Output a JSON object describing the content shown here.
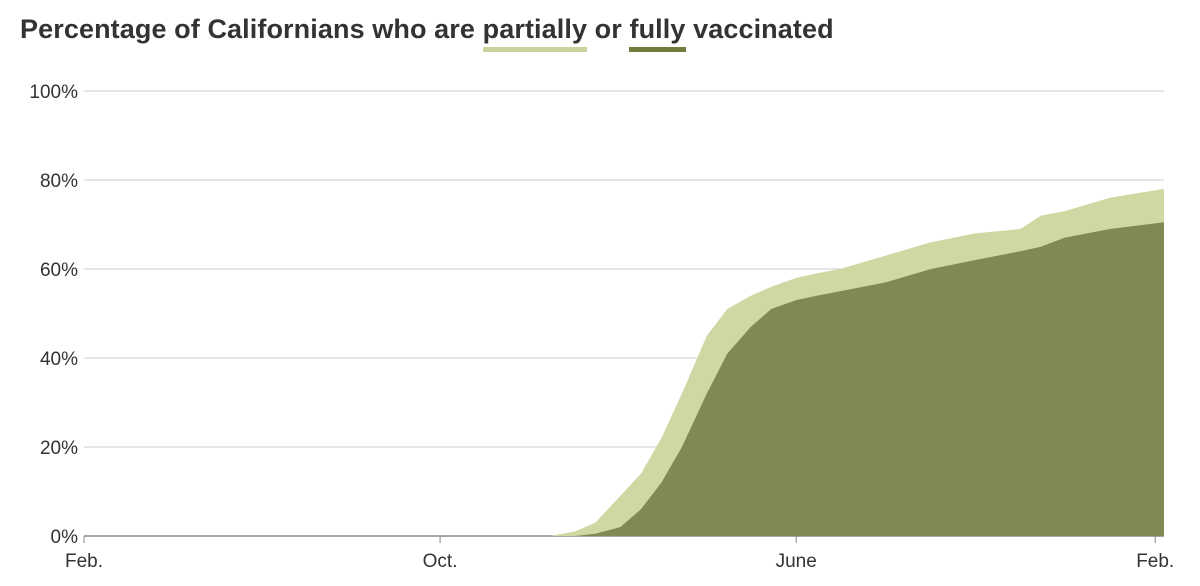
{
  "title": {
    "prefix": "Percentage of Californians who are ",
    "partial_word": "partially",
    "middle": " or ",
    "full_word": "fully",
    "suffix": " vaccinated"
  },
  "colors": {
    "partial": "#cfd8a3",
    "full": "#7e8a52",
    "grid": "#cccccc",
    "axis": "#888888",
    "partial_underline": "#c9d49c",
    "full_underline": "#6f7d3f"
  },
  "chart_data": {
    "type": "area",
    "title": "Percentage of Californians who are partially or fully vaccinated",
    "xlabel": "",
    "ylabel": "",
    "ylim": [
      0,
      100
    ],
    "yticks": [
      0,
      20,
      40,
      60,
      80,
      100
    ],
    "ytick_labels": [
      "0%",
      "20%",
      "40%",
      "60%",
      "80%",
      "100%"
    ],
    "xlim": [
      "2020-02-01",
      "2022-02-07"
    ],
    "xticks": [
      "2020-02-01",
      "2020-10-01",
      "2021-06-01",
      "2022-02-01"
    ],
    "xtick_labels": [
      "Feb.",
      "Oct.",
      "June",
      "Feb."
    ],
    "grid": true,
    "legend": "title",
    "x": [
      "2020-02-01",
      "2020-12-15",
      "2021-01-01",
      "2021-01-15",
      "2021-02-01",
      "2021-02-15",
      "2021-03-01",
      "2021-03-15",
      "2021-04-01",
      "2021-04-15",
      "2021-05-01",
      "2021-05-15",
      "2021-06-01",
      "2021-06-15",
      "2021-07-01",
      "2021-08-01",
      "2021-09-01",
      "2021-10-01",
      "2021-11-01",
      "2021-11-15",
      "2021-12-01",
      "2022-01-01",
      "2022-02-07"
    ],
    "series": [
      {
        "name": "partially",
        "values": [
          0,
          0,
          1,
          3,
          9,
          14,
          22,
          32,
          45,
          51,
          54,
          56,
          58,
          59,
          60,
          63,
          66,
          68,
          69,
          72,
          73,
          76,
          78
        ]
      },
      {
        "name": "fully",
        "values": [
          0,
          0,
          0,
          0.5,
          2,
          6,
          12,
          20,
          32,
          41,
          47,
          51,
          53,
          54,
          55,
          57,
          60,
          62,
          64,
          65,
          67,
          69,
          70.5
        ]
      }
    ]
  }
}
